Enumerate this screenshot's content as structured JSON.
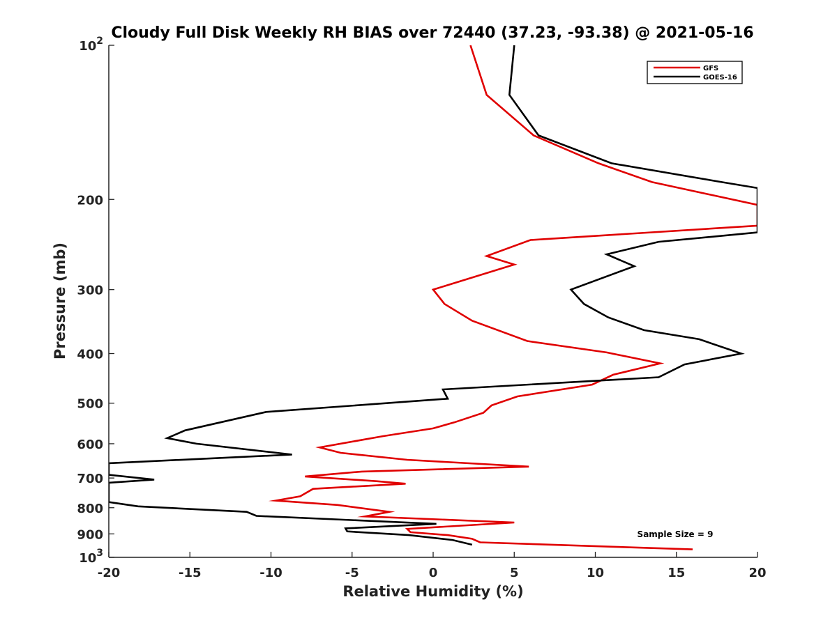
{
  "chart_data": {
    "type": "line",
    "title": "Cloudy Full Disk Weekly RH BIAS over 72440 (37.23, -93.38) @ 2021-05-16",
    "xlabel": "Relative Humidity (%)",
    "ylabel": "Pressure (mb)",
    "xlim": [
      -20,
      20
    ],
    "ylim": [
      100,
      1000
    ],
    "yscale": "log",
    "y_reversed": true,
    "xticks": [
      -20,
      -15,
      -10,
      -5,
      0,
      5,
      10,
      15,
      20
    ],
    "xtick_labels": [
      "-20",
      "-15",
      "-10",
      "-5",
      "0",
      "5",
      "10",
      "15",
      "20"
    ],
    "yticks": [
      100,
      200,
      300,
      400,
      500,
      600,
      700,
      800,
      900,
      1000
    ],
    "ytick_labels": [
      {
        "base": "10",
        "exp": "2"
      },
      {
        "base": "200",
        "exp": ""
      },
      {
        "base": "300",
        "exp": ""
      },
      {
        "base": "400",
        "exp": ""
      },
      {
        "base": "500",
        "exp": ""
      },
      {
        "base": "600",
        "exp": ""
      },
      {
        "base": "700",
        "exp": ""
      },
      {
        "base": "800",
        "exp": ""
      },
      {
        "base": "900",
        "exp": ""
      },
      {
        "base": "10",
        "exp": "3"
      }
    ],
    "grid": false,
    "legend_position": "top-right",
    "annotation": "Sample Size = 9",
    "series": [
      {
        "name": "GFS",
        "color": "#e00000",
        "points": [
          [
            2.3,
            100
          ],
          [
            3.3,
            125
          ],
          [
            6.2,
            150
          ],
          [
            10.2,
            170
          ],
          [
            13.5,
            185
          ],
          [
            20.0,
            205
          ],
          [
            20.0,
            225
          ],
          [
            6.0,
            240
          ],
          [
            3.3,
            258
          ],
          [
            5.0,
            268
          ],
          [
            0.0,
            300
          ],
          [
            0.7,
            320
          ],
          [
            2.4,
            345
          ],
          [
            5.8,
            378
          ],
          [
            10.7,
            398
          ],
          [
            14.0,
            418
          ],
          [
            11.1,
            440
          ],
          [
            9.8,
            460
          ],
          [
            5.2,
            485
          ],
          [
            3.6,
            505
          ],
          [
            3.1,
            522
          ],
          [
            1.3,
            545
          ],
          [
            0.0,
            560
          ],
          [
            -3.1,
            580
          ],
          [
            -7.0,
            610
          ],
          [
            -5.7,
            625
          ],
          [
            -1.6,
            645
          ],
          [
            5.9,
            665
          ],
          [
            -4.4,
            680
          ],
          [
            -7.9,
            695
          ],
          [
            -3.5,
            710
          ],
          [
            -1.7,
            718
          ],
          [
            -7.4,
            735
          ],
          [
            -8.2,
            760
          ],
          [
            -9.7,
            775
          ],
          [
            -5.9,
            790
          ],
          [
            -2.7,
            815
          ],
          [
            -4.2,
            832
          ],
          [
            5.0,
            855
          ],
          [
            -1.6,
            880
          ],
          [
            -1.4,
            893
          ],
          [
            0.9,
            905
          ],
          [
            2.4,
            920
          ],
          [
            2.9,
            935
          ],
          [
            16.0,
            965
          ]
        ]
      },
      {
        "name": "GOES-16",
        "color": "#000000",
        "points": [
          [
            5.0,
            100
          ],
          [
            4.7,
            125
          ],
          [
            6.5,
            150
          ],
          [
            11.0,
            170
          ],
          [
            17.8,
            185
          ],
          [
            20.0,
            190
          ],
          [
            20.0,
            232
          ],
          [
            13.9,
            242
          ],
          [
            10.7,
            256
          ],
          [
            12.4,
            270
          ],
          [
            8.5,
            300
          ],
          [
            9.3,
            320
          ],
          [
            10.8,
            340
          ],
          [
            13.0,
            360
          ],
          [
            16.4,
            375
          ],
          [
            19.0,
            400
          ],
          [
            15.5,
            420
          ],
          [
            13.9,
            445
          ],
          [
            0.6,
            470
          ],
          [
            0.9,
            490
          ],
          [
            -10.3,
            520
          ],
          [
            -15.3,
            565
          ],
          [
            -16.4,
            585
          ],
          [
            -14.6,
            600
          ],
          [
            -8.7,
            630
          ],
          [
            -20.0,
            655
          ],
          [
            -20.0,
            690
          ],
          [
            -17.2,
            705
          ],
          [
            -20.0,
            715
          ],
          [
            -20.0,
            780
          ],
          [
            -18.2,
            795
          ],
          [
            -11.5,
            815
          ],
          [
            -10.9,
            830
          ],
          [
            0.2,
            860
          ],
          [
            -5.4,
            878
          ],
          [
            -5.3,
            890
          ],
          [
            -1.5,
            905
          ],
          [
            1.2,
            925
          ],
          [
            2.4,
            945
          ]
        ]
      }
    ]
  }
}
